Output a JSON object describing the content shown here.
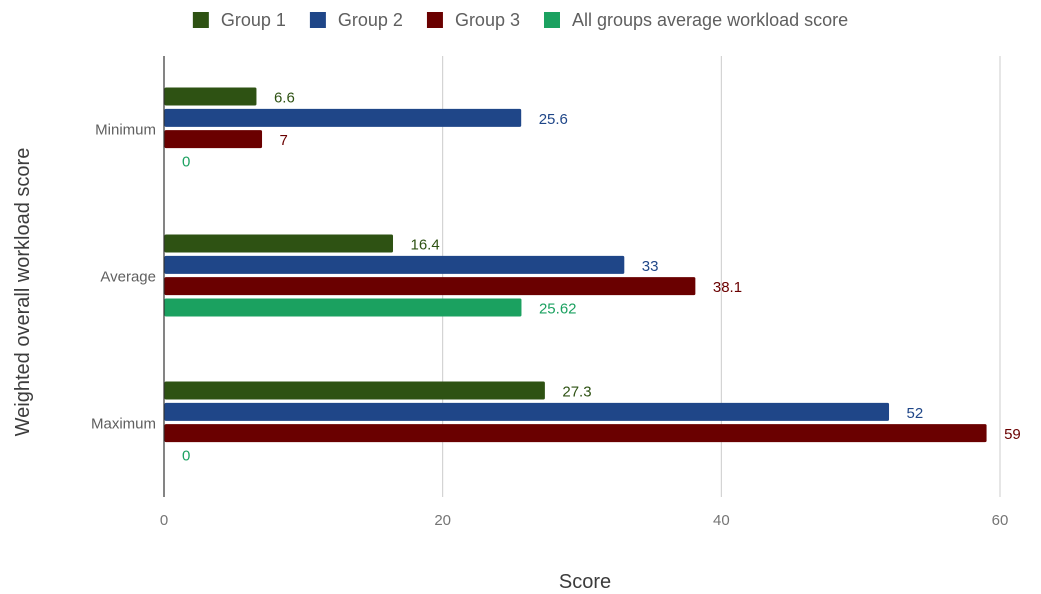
{
  "chart_data": {
    "type": "bar",
    "orientation": "horizontal",
    "categories": [
      "Minimum",
      "Average",
      "Maximum"
    ],
    "series": [
      {
        "name": "Group 1",
        "values": [
          6.6,
          16.4,
          27.3
        ],
        "labels": [
          "6.6",
          "16.4",
          "27.3"
        ],
        "color": "#2e5213",
        "label_color": "#2e5213"
      },
      {
        "name": "Group 2",
        "values": [
          25.6,
          33,
          52
        ],
        "labels": [
          "25.6",
          "33",
          "52"
        ],
        "color": "#1f4688",
        "label_color": "#1f4688"
      },
      {
        "name": "Group 3",
        "values": [
          7,
          38.1,
          59
        ],
        "labels": [
          "7",
          "38.1",
          "59"
        ],
        "color": "#6a0000",
        "label_color": "#6a0000"
      },
      {
        "name": "All groups average workload score",
        "values": [
          0,
          25.62,
          0
        ],
        "labels": [
          "0",
          "25.62",
          "0"
        ],
        "color": "#1ba160",
        "label_color": "#1ba160"
      }
    ],
    "xlabel": "Score",
    "ylabel": "Weighted overall workload score",
    "xlim": [
      0,
      60
    ],
    "xticks": [
      "0",
      "20",
      "40",
      "60"
    ],
    "grid": true,
    "legend_position": "top"
  }
}
